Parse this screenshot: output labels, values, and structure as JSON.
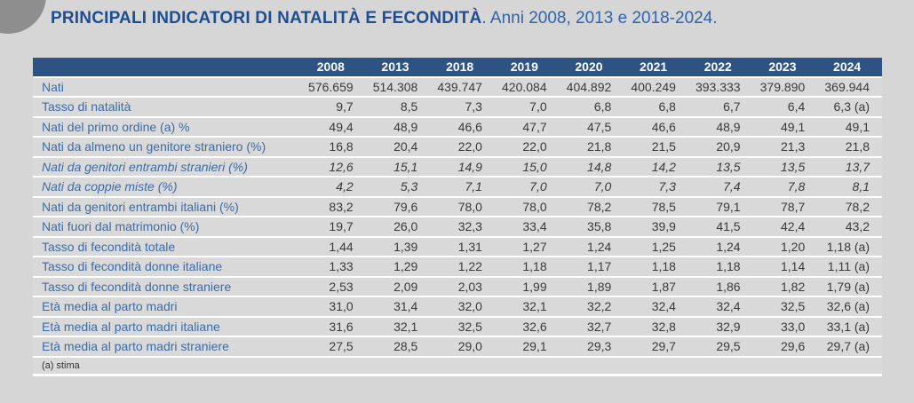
{
  "chart_data": {
    "type": "table",
    "title": "PRINCIPALI INDICATORI DI NATALITÀ E FECONDITÀ",
    "subtitle": ". Anni 2008, 2013 e 2018-2024.",
    "categories": [
      "2008",
      "2013",
      "2018",
      "2019",
      "2020",
      "2021",
      "2022",
      "2023",
      "2024"
    ],
    "series": [
      {
        "name": "Nati",
        "italic": false,
        "values": [
          "576.659",
          "514.308",
          "439.747",
          "420.084",
          "404.892",
          "400.249",
          "393.333",
          "379.890",
          "369.944"
        ]
      },
      {
        "name": "Tasso di natalità",
        "italic": false,
        "values": [
          "9,7",
          "8,5",
          "7,3",
          "7,0",
          "6,8",
          "6,8",
          "6,7",
          "6,4",
          "6,3 (a)"
        ]
      },
      {
        "name": "Nati del primo ordine (a) %",
        "italic": false,
        "values": [
          "49,4",
          "48,9",
          "46,6",
          "47,7",
          "47,5",
          "46,6",
          "48,9",
          "49,1",
          "49,1"
        ]
      },
      {
        "name": "Nati da almeno un genitore straniero (%)",
        "italic": false,
        "values": [
          "16,8",
          "20,4",
          "22,0",
          "22,0",
          "21,8",
          "21,5",
          "20,9",
          "21,3",
          "21,8"
        ]
      },
      {
        "name": "Nati da genitori entrambi stranieri (%)",
        "italic": true,
        "values": [
          "12,6",
          "15,1",
          "14,9",
          "15,0",
          "14,8",
          "14,2",
          "13,5",
          "13,5",
          "13,7"
        ]
      },
      {
        "name": "Nati da coppie miste (%)",
        "italic": true,
        "values": [
          "4,2",
          "5,3",
          "7,1",
          "7,0",
          "7,0",
          "7,3",
          "7,4",
          "7,8",
          "8,1"
        ]
      },
      {
        "name": "Nati da genitori entrambi italiani (%)",
        "italic": false,
        "values": [
          "83,2",
          "79,6",
          "78,0",
          "78,0",
          "78,2",
          "78,5",
          "79,1",
          "78,7",
          "78,2"
        ]
      },
      {
        "name": "Nati fuori dal matrimonio (%)",
        "italic": false,
        "values": [
          "19,7",
          "26,0",
          "32,3",
          "33,4",
          "35,8",
          "39,9",
          "41,5",
          "42,4",
          "43,2"
        ]
      },
      {
        "name": "Tasso di fecondità totale",
        "italic": false,
        "values": [
          "1,44",
          "1,39",
          "1,31",
          "1,27",
          "1,24",
          "1,25",
          "1,24",
          "1,20",
          "1,18 (a)"
        ]
      },
      {
        "name": "Tasso di fecondità donne italiane",
        "italic": false,
        "values": [
          "1,33",
          "1,29",
          "1,22",
          "1,18",
          "1,17",
          "1,18",
          "1,18",
          "1,14",
          "1,11 (a)"
        ]
      },
      {
        "name": "Tasso di fecondità donne straniere",
        "italic": false,
        "values": [
          "2,53",
          "2,09",
          "2,03",
          "1,99",
          "1,89",
          "1,87",
          "1,86",
          "1,82",
          "1,79 (a)"
        ]
      },
      {
        "name": "Età media al parto madri",
        "italic": false,
        "values": [
          "31,0",
          "31,4",
          "32,0",
          "32,1",
          "32,2",
          "32,4",
          "32,4",
          "32,5",
          "32,6 (a)"
        ]
      },
      {
        "name": "Età media al parto madri italiane",
        "italic": false,
        "values": [
          "31,6",
          "32,1",
          "32,5",
          "32,6",
          "32,7",
          "32,8",
          "32,9",
          "33,0",
          "33,1 (a)"
        ]
      },
      {
        "name": "Età media al parto madri straniere",
        "italic": false,
        "values": [
          "27,5",
          "28,5",
          "29,0",
          "29,1",
          "29,3",
          "29,7",
          "29,5",
          "29,6",
          "29,7 (a)"
        ]
      }
    ],
    "footnote": "(a) stima",
    "layout": {
      "legend": "none",
      "grid": "white-row-separators"
    }
  },
  "colors": {
    "page_background": "#d6d6d6",
    "header_bar": "#2d5384",
    "header_text": "#ffffff",
    "title_bold_blue": "#1d4e94",
    "title_light_blue": "#2e63ae",
    "row_label_blue": "#3c6ca8",
    "value_text": "#3a3a3a",
    "row_background": "#d9d9d9",
    "separator": "#ffffff",
    "corner_circle_gray": "#8e8e8e"
  }
}
